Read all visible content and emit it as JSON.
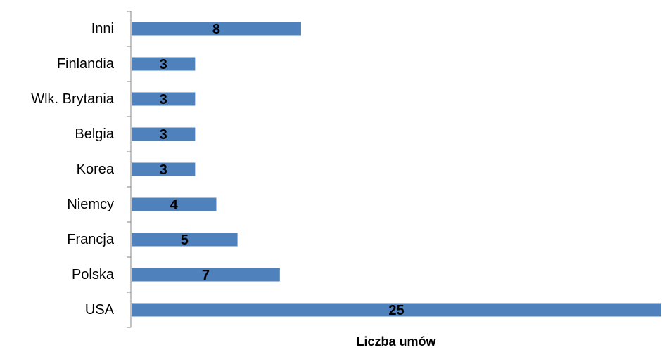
{
  "chart_data": {
    "type": "bar",
    "orientation": "horizontal",
    "categories": [
      "USA",
      "Polska",
      "Francja",
      "Niemcy",
      "Korea",
      "Belgia",
      "Wlk. Brytania",
      "Finlandia",
      "Inni"
    ],
    "values": [
      25,
      7,
      5,
      4,
      3,
      3,
      3,
      3,
      8
    ],
    "xlabel": "Liczba umów",
    "ylabel": "",
    "xlim": [
      0,
      25
    ],
    "grid": false,
    "legend": "none",
    "bar_color": "#4F81BD"
  }
}
